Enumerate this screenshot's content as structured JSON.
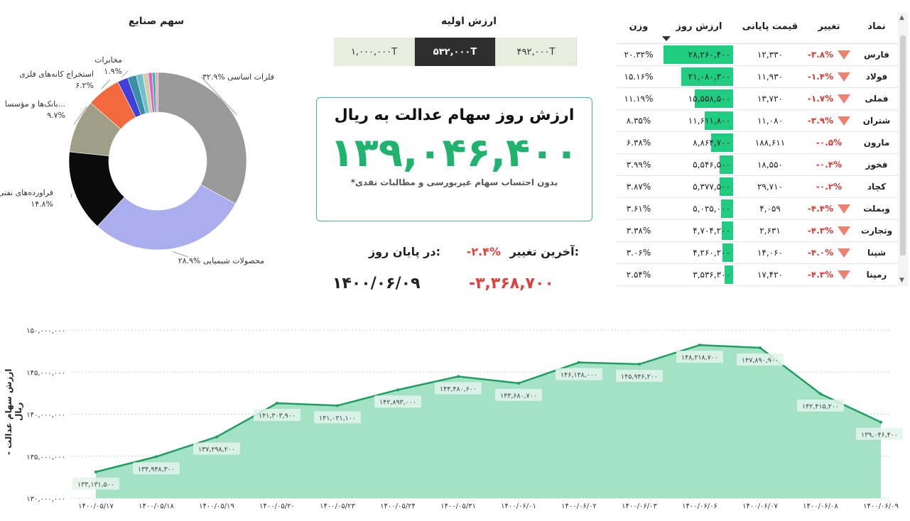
{
  "colors": {
    "accent_green": "#1fb36e",
    "bar_green": "#20cc80",
    "negative_red": "#e0403a",
    "area_fill": "#9fe0c3",
    "area_line": "#1f9e62"
  },
  "sectors": {
    "title": "سهم صنایع",
    "slices": [
      {
        "label": "فلزات اساسی",
        "value": 32.9,
        "pct_label": "۳۲.۹%",
        "color": "#999999"
      },
      {
        "label": "محصولات شیمیایی",
        "value": 28.9,
        "pct_label": "۲۸.۹%",
        "color": "#aaaeee"
      },
      {
        "label": "فراورده‌های نفتی",
        "value": 14.8,
        "pct_label": "۱۴.۸%",
        "color": "#0b0b0b"
      },
      {
        "label": "بانک‌ها و مؤسسا...",
        "value": 9.7,
        "pct_label": "۹.۷%",
        "color": "#9e9f86"
      },
      {
        "label": "استخراج کانه‌های فلزی",
        "value": 6.2,
        "pct_label": "۶.۲%",
        "color": "#f26a3c"
      },
      {
        "label": "مخابرات",
        "value": 1.9,
        "pct_label": "۱.۹%",
        "color": "#3f3fd9"
      },
      {
        "label": "",
        "value": 1.6,
        "pct_label": "",
        "color": "#3a8fa6"
      },
      {
        "label": "",
        "value": 1.2,
        "pct_label": "",
        "color": "#6fc0c9"
      },
      {
        "label": "",
        "value": 1.0,
        "pct_label": "",
        "color": "#cfcfa8"
      },
      {
        "label": "",
        "value": 0.7,
        "pct_label": "",
        "color": "#e85ad0"
      },
      {
        "label": "",
        "value": 0.6,
        "pct_label": "",
        "color": "#34c0a0"
      },
      {
        "label": "",
        "value": 0.5,
        "pct_label": "",
        "color": "#f0a0c0"
      }
    ]
  },
  "initial_value": {
    "title": "ارزش اولیه",
    "options": [
      "۱,۰۰۰,۰۰۰T",
      "۵۳۲,۰۰۰T",
      "۴۹۲,۰۰۰T"
    ],
    "selected": "۵۳۲,۰۰۰T"
  },
  "value_card": {
    "title": "ارزش روز سهام عدالت به ریال",
    "amount": "۱۳۹,۰۴۶,۴۰۰",
    "note": "*بدون احتساب سهام غیربورسی و مطالبات نقدی"
  },
  "last_change": {
    "label": "آخرین تغییر:",
    "pct": "-۲.۴%",
    "eod_label": "در پایان روز:",
    "amount": "-۳,۳۶۸,۷۰۰",
    "date": "۱۴۰۰/۰۶/۰۹"
  },
  "table": {
    "headers": {
      "symbol": "نماد",
      "change": "تغییر",
      "price": "قیمت پایانی",
      "value": "ارزش روز",
      "weight": "وزن"
    },
    "rows": [
      {
        "symbol": "فارس",
        "change": "-۳.۸%",
        "down": true,
        "price": "۱۲,۳۳۰",
        "value": "۲۸,۲۶۰,۴۰۰",
        "value_num": 28260400,
        "weight": "۲۰.۳۲%"
      },
      {
        "symbol": "فولاد",
        "change": "-۱.۴%",
        "down": true,
        "price": "۱۱,۹۳۰",
        "value": "۲۱,۰۸۰,۳۰۰",
        "value_num": 21080300,
        "weight": "۱۵.۱۶%"
      },
      {
        "symbol": "فملی",
        "change": "-۱.۷%",
        "down": true,
        "price": "۱۳,۷۲۰",
        "value": "۱۵,۵۵۸,۵۰۰",
        "value_num": 15558500,
        "weight": "۱۱.۱۹%"
      },
      {
        "symbol": "شتران",
        "change": "-۳.۹%",
        "down": true,
        "price": "۱۱,۰۸۰",
        "value": "۱۱,۶۱۱,۸۰۰",
        "value_num": 11611800,
        "weight": "۸.۳۵%"
      },
      {
        "symbol": "مارون",
        "change": "-۰.۵%",
        "down": false,
        "price": "۱۸۸,۶۱۱",
        "value": "۸,۸۶۴,۷۰۰",
        "value_num": 8864700,
        "weight": "۶.۳۸%"
      },
      {
        "symbol": "فخوز",
        "change": "-۰.۴%",
        "down": false,
        "price": "۱۸,۵۵۰",
        "value": "۵,۵۴۶,۵۰۰",
        "value_num": 5546500,
        "weight": "۳.۹۹%"
      },
      {
        "symbol": "کچاد",
        "change": "-۰.۲%",
        "down": false,
        "price": "۲۹,۷۱۰",
        "value": "۵,۳۷۷,۵۰۰",
        "value_num": 5377500,
        "weight": "۳.۸۷%"
      },
      {
        "symbol": "وبملت",
        "change": "-۴.۴%",
        "down": true,
        "price": "۴,۰۵۹",
        "value": "۵,۰۲۵,۰۰۰",
        "value_num": 5025000,
        "weight": "۳.۶۱%"
      },
      {
        "symbol": "وتجارت",
        "change": "-۴.۳%",
        "down": true,
        "price": "۲,۶۳۱",
        "value": "۴,۷۰۴,۲۰۰",
        "value_num": 4704200,
        "weight": "۳.۳۸%"
      },
      {
        "symbol": "شپنا",
        "change": "-۴.۰%",
        "down": true,
        "price": "۱۴,۰۶۰",
        "value": "۴,۲۶۰,۲۰۰",
        "value_num": 4260200,
        "weight": "۳.۰۶%"
      },
      {
        "symbol": "رمپنا",
        "change": "-۴.۳%",
        "down": true,
        "price": "۱۷,۴۲۰",
        "value": "۳,۵۳۶,۳۰۰",
        "value_num": 3536300,
        "weight": "۲.۵۴%"
      }
    ]
  },
  "chart_data": {
    "type": "area",
    "ylabel": "ارزش سهام عدالت - ریال",
    "ylim": [
      130000000,
      150000000
    ],
    "y_ticks": [
      130000000,
      135000000,
      140000000,
      145000000,
      150000000
    ],
    "y_tick_labels": [
      "۱۳۰,۰۰۰,۰۰۰",
      "۱۳۵,۰۰۰,۰۰۰",
      "۱۴۰,۰۰۰,۰۰۰",
      "۱۴۵,۰۰۰,۰۰۰",
      "۱۵۰,۰۰۰,۰۰۰"
    ],
    "x": [
      "۱۴۰۰/۰۵/۱۷",
      "۱۴۰۰/۰۵/۱۸",
      "۱۴۰۰/۰۵/۱۹",
      "۱۴۰۰/۰۵/۲۰",
      "۱۴۰۰/۰۵/۲۳",
      "۱۴۰۰/۰۵/۲۴",
      "۱۴۰۰/۰۵/۳۱",
      "۱۴۰۰/۰۶/۰۱",
      "۱۴۰۰/۰۶/۰۲",
      "۱۴۰۰/۰۶/۰۳",
      "۱۴۰۰/۰۶/۰۶",
      "۱۴۰۰/۰۶/۰۷",
      "۱۴۰۰/۰۶/۰۸",
      "۱۴۰۰/۰۶/۰۹"
    ],
    "values": [
      133131500,
      134948300,
      137298200,
      141303900,
      141021100,
      142893000,
      144480600,
      143680700,
      146148000,
      145946200,
      148218700,
      147890900,
      142415200,
      139046400
    ],
    "value_labels": [
      "۱۳۳,۱۳۱,۵۰۰",
      "۱۳۴,۹۴۸,۳۰۰",
      "۱۳۷,۲۹۸,۲۰۰",
      "۱۴۱,۳۰۳,۹۰۰",
      "۱۴۱,۰۲۱,۱۰۰",
      "۱۴۲,۸۹۳,۰۰۰",
      "۱۴۴,۴۸۰,۶۰۰",
      "۱۴۳,۶۸۰,۷۰۰",
      "۱۴۶,۱۴۸,۰۰۰",
      "۱۴۵,۹۴۶,۲۰۰",
      "۱۴۸,۲۱۸,۷۰۰",
      "۱۴۷,۸۹۰,۹۰۰",
      "۱۴۲,۴۱۵,۲۰۰",
      "۱۳۹,۰۴۶,۴۰۰"
    ],
    "grid": true
  }
}
